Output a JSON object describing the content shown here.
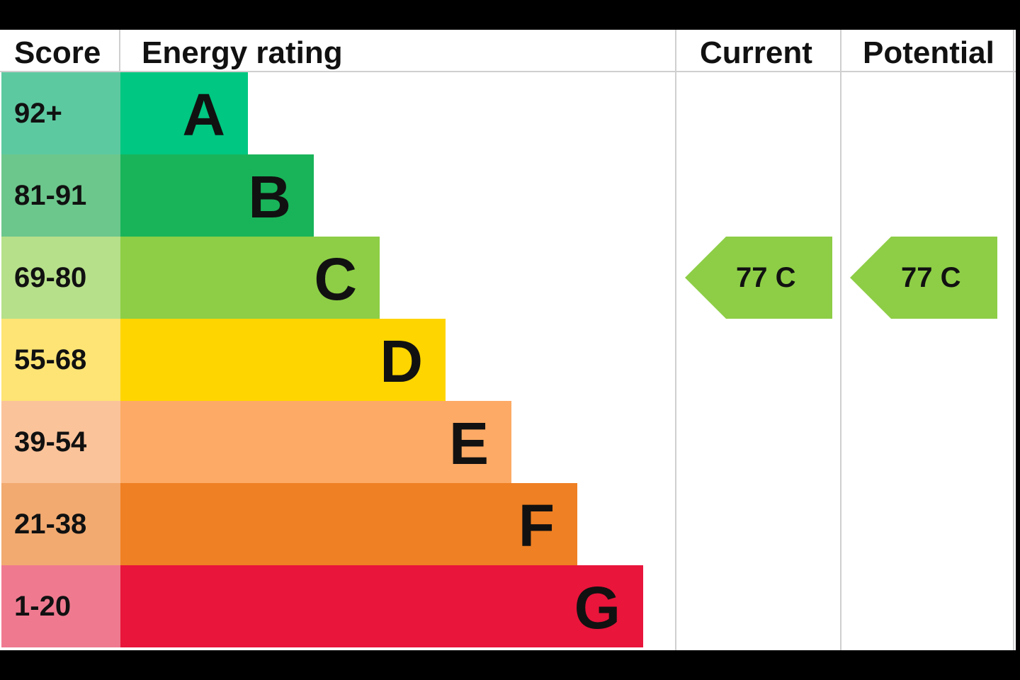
{
  "headers": {
    "score": "Score",
    "energy_rating": "Energy rating",
    "current": "Current",
    "potential": "Potential"
  },
  "chart_data": {
    "type": "bar",
    "categories": [
      "A",
      "B",
      "C",
      "D",
      "E",
      "F",
      "G"
    ],
    "bands": [
      {
        "letter": "A",
        "score": "92+",
        "color": "#00c781",
        "score_color": "#5dc9a1"
      },
      {
        "letter": "B",
        "score": "81-91",
        "color": "#19b459",
        "score_color": "#6cc78c"
      },
      {
        "letter": "C",
        "score": "69-80",
        "color": "#8dce46",
        "score_color": "#b6e08a"
      },
      {
        "letter": "D",
        "score": "55-68",
        "color": "#ffd500",
        "score_color": "#fde474"
      },
      {
        "letter": "E",
        "score": "39-54",
        "color": "#fcaa65",
        "score_color": "#fbc39a"
      },
      {
        "letter": "F",
        "score": "21-38",
        "color": "#ef8023",
        "score_color": "#f2aa70"
      },
      {
        "letter": "G",
        "score": "1-20",
        "color": "#e9153b",
        "score_color": "#ef7a90"
      }
    ],
    "current": {
      "value": 77,
      "band": "C",
      "label": "77  C",
      "color": "#8dce46"
    },
    "potential": {
      "value": 77,
      "band": "C",
      "label": "77  C",
      "color": "#8dce46"
    }
  }
}
